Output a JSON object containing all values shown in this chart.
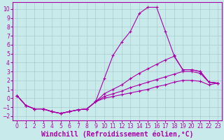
{
  "bg_color": "#c8eaea",
  "line_color": "#aa00aa",
  "grid_color": "#aacccc",
  "xlabel": "Windchill (Refroidissement éolien,°C)",
  "ylim": [
    -2.5,
    10.8
  ],
  "xlim": [
    -0.5,
    23.5
  ],
  "yticks": [
    -2,
    -1,
    0,
    1,
    2,
    3,
    4,
    5,
    6,
    7,
    8,
    9,
    10
  ],
  "xticks": [
    0,
    1,
    2,
    3,
    4,
    5,
    6,
    7,
    8,
    9,
    10,
    11,
    12,
    13,
    14,
    15,
    16,
    17,
    18,
    19,
    20,
    21,
    22,
    23
  ],
  "line1_y": [
    0.3,
    -0.8,
    -1.2,
    -1.2,
    -1.5,
    -1.7,
    -1.5,
    -1.3,
    -1.2,
    -0.4,
    2.2,
    4.8,
    6.3,
    7.5,
    9.5,
    10.2,
    10.2,
    7.5,
    4.8,
    3.2,
    3.2,
    3.0,
    1.8,
    1.7
  ],
  "line2_y": [
    0.3,
    -0.8,
    -1.2,
    -1.2,
    -1.5,
    -1.7,
    -1.5,
    -1.3,
    -1.2,
    -0.4,
    0.5,
    1.0,
    1.5,
    2.2,
    2.8,
    3.3,
    3.8,
    4.3,
    4.7,
    3.2,
    3.2,
    3.0,
    1.8,
    1.7
  ],
  "line3_y": [
    0.3,
    -0.8,
    -1.2,
    -1.2,
    -1.5,
    -1.7,
    -1.5,
    -1.3,
    -1.2,
    -0.4,
    0.2,
    0.5,
    0.8,
    1.2,
    1.5,
    1.8,
    2.1,
    2.4,
    2.7,
    3.0,
    3.0,
    2.8,
    1.8,
    1.7
  ],
  "line4_y": [
    0.3,
    -0.8,
    -1.2,
    -1.2,
    -1.5,
    -1.7,
    -1.5,
    -1.3,
    -1.2,
    -0.4,
    0.0,
    0.2,
    0.4,
    0.6,
    0.8,
    1.0,
    1.3,
    1.5,
    1.8,
    2.0,
    2.0,
    1.9,
    1.5,
    1.7
  ]
}
